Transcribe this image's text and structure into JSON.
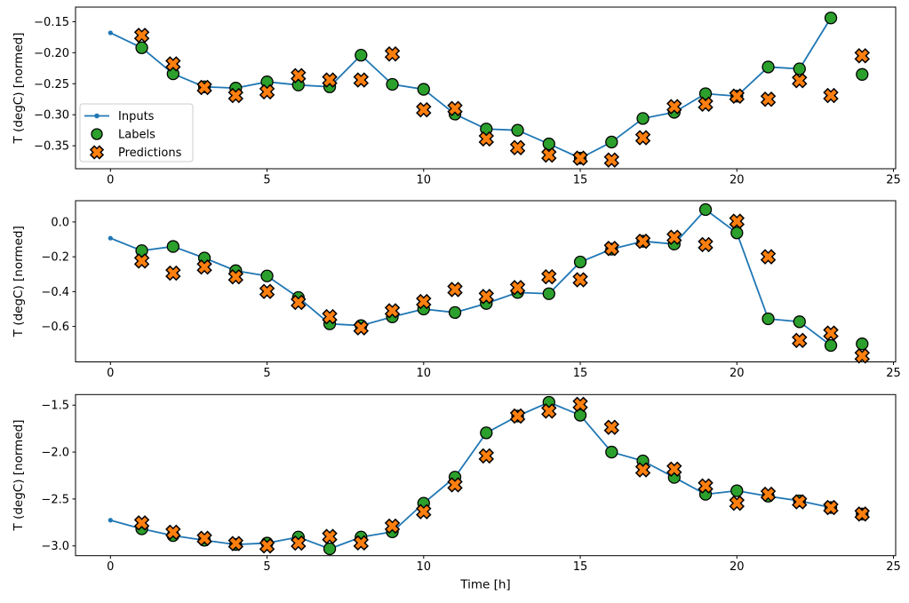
{
  "figure": {
    "kind": "matplotlib-style time series figure",
    "background": "#ffffff",
    "xlabel": "Time [h]",
    "ylabel": "T (degC) [normed]"
  },
  "colors": {
    "inputs": "#1f77b4",
    "labels": "#2ca02c",
    "predictions": "#ff7f0e",
    "marker_edge": "#000000",
    "legend_border": "#cccccc",
    "axis": "#000000"
  },
  "legend": {
    "position": "upper-left-of-first-subplot",
    "entries": [
      {
        "label": "Inputs",
        "marker": "line-dot",
        "color": "#1f77b4"
      },
      {
        "label": "Labels",
        "marker": "circle",
        "color": "#2ca02c"
      },
      {
        "label": "Predictions",
        "marker": "x-cross",
        "color": "#ff7f0e"
      }
    ]
  },
  "x_axis": {
    "ticks": [
      0,
      5,
      10,
      15,
      20,
      25
    ],
    "tick_labels": [
      "0",
      "5",
      "10",
      "15",
      "20",
      "25"
    ]
  },
  "chart_data": [
    {
      "id": "top",
      "type": "line",
      "ylabel": "T (degC) [normed]",
      "xlabel": "",
      "xlim": [
        -1.115,
        25.07
      ],
      "ylim": [
        -0.387,
        -0.1265
      ],
      "grid": false,
      "y_ticks": [
        {
          "v": -0.15,
          "label": "−0.15"
        },
        {
          "v": -0.2,
          "label": "−0.20"
        },
        {
          "v": -0.25,
          "label": "−0.25"
        },
        {
          "v": -0.3,
          "label": "−0.30"
        },
        {
          "v": -0.35,
          "label": "−0.35"
        }
      ],
      "series": [
        {
          "name": "Inputs",
          "kind": "line-dot",
          "x": [
            0,
            1,
            2,
            3,
            4,
            5,
            6,
            7,
            8,
            9,
            10,
            11,
            12,
            13,
            14,
            15,
            16,
            17,
            18,
            19,
            20,
            21,
            22,
            23
          ],
          "y": [
            -0.168,
            -0.192,
            -0.234,
            -0.255,
            -0.257,
            -0.247,
            -0.252,
            -0.255,
            -0.204,
            -0.251,
            -0.259,
            -0.299,
            -0.323,
            -0.325,
            -0.347,
            -0.37,
            -0.344,
            -0.306,
            -0.296,
            -0.266,
            -0.27,
            -0.223,
            -0.226,
            -0.144
          ]
        },
        {
          "name": "Labels",
          "kind": "circle",
          "x": [
            1,
            2,
            3,
            4,
            5,
            6,
            7,
            8,
            9,
            10,
            11,
            12,
            13,
            14,
            15,
            16,
            17,
            18,
            19,
            20,
            21,
            22,
            23,
            24
          ],
          "y": [
            -0.192,
            -0.234,
            -0.255,
            -0.257,
            -0.247,
            -0.252,
            -0.255,
            -0.204,
            -0.251,
            -0.259,
            -0.299,
            -0.323,
            -0.325,
            -0.347,
            -0.37,
            -0.344,
            -0.306,
            -0.296,
            -0.266,
            -0.27,
            -0.223,
            -0.226,
            -0.144,
            -0.235
          ]
        },
        {
          "name": "Predictions",
          "kind": "x-cross",
          "x": [
            1,
            2,
            3,
            4,
            5,
            6,
            7,
            8,
            9,
            10,
            11,
            12,
            13,
            14,
            15,
            16,
            17,
            18,
            19,
            20,
            21,
            22,
            23,
            24
          ],
          "y": [
            -0.172,
            -0.218,
            -0.256,
            -0.269,
            -0.263,
            -0.237,
            -0.244,
            -0.244,
            -0.202,
            -0.292,
            -0.29,
            -0.339,
            -0.353,
            -0.365,
            -0.37,
            -0.373,
            -0.337,
            -0.287,
            -0.283,
            -0.27,
            -0.275,
            -0.245,
            -0.269,
            -0.205
          ]
        }
      ]
    },
    {
      "id": "middle",
      "type": "line",
      "ylabel": "T (degC) [normed]",
      "xlabel": "",
      "xlim": [
        -1.115,
        25.07
      ],
      "ylim": [
        -0.8035,
        0.122
      ],
      "grid": false,
      "y_ticks": [
        {
          "v": 0.0,
          "label": "0.0"
        },
        {
          "v": -0.2,
          "label": "−0.2"
        },
        {
          "v": -0.4,
          "label": "−0.4"
        },
        {
          "v": -0.6,
          "label": "−0.6"
        }
      ],
      "series": [
        {
          "name": "Inputs",
          "kind": "line-dot",
          "x": [
            0,
            1,
            2,
            3,
            4,
            5,
            6,
            7,
            8,
            9,
            10,
            11,
            12,
            13,
            14,
            15,
            16,
            17,
            18,
            19,
            20,
            21,
            22,
            23
          ],
          "y": [
            -0.093,
            -0.165,
            -0.141,
            -0.207,
            -0.28,
            -0.31,
            -0.434,
            -0.585,
            -0.595,
            -0.545,
            -0.5,
            -0.52,
            -0.468,
            -0.405,
            -0.412,
            -0.23,
            -0.156,
            -0.111,
            -0.127,
            0.071,
            -0.063,
            -0.556,
            -0.573,
            -0.709
          ]
        },
        {
          "name": "Labels",
          "kind": "circle",
          "x": [
            1,
            2,
            3,
            4,
            5,
            6,
            7,
            8,
            9,
            10,
            11,
            12,
            13,
            14,
            15,
            16,
            17,
            18,
            19,
            20,
            21,
            22,
            23,
            24
          ],
          "y": [
            -0.165,
            -0.141,
            -0.207,
            -0.28,
            -0.31,
            -0.434,
            -0.585,
            -0.595,
            -0.545,
            -0.5,
            -0.52,
            -0.468,
            -0.405,
            -0.412,
            -0.23,
            -0.156,
            -0.111,
            -0.127,
            0.071,
            -0.063,
            -0.556,
            -0.573,
            -0.709,
            -0.7
          ]
        },
        {
          "name": "Predictions",
          "kind": "x-cross",
          "x": [
            1,
            2,
            3,
            4,
            5,
            6,
            7,
            8,
            9,
            10,
            11,
            12,
            13,
            14,
            15,
            16,
            17,
            18,
            19,
            20,
            21,
            22,
            23,
            24
          ],
          "y": [
            -0.224,
            -0.294,
            -0.259,
            -0.315,
            -0.399,
            -0.462,
            -0.544,
            -0.608,
            -0.51,
            -0.457,
            -0.388,
            -0.428,
            -0.377,
            -0.315,
            -0.332,
            -0.152,
            -0.111,
            -0.088,
            -0.13,
            0.004,
            -0.2,
            -0.68,
            -0.638,
            -0.769
          ]
        }
      ]
    },
    {
      "id": "bottom",
      "type": "line",
      "ylabel": "T (degC) [normed]",
      "xlabel": "Time [h]",
      "xlim": [
        -1.115,
        25.07
      ],
      "ylim": [
        -3.104,
        -1.387
      ],
      "grid": false,
      "y_ticks": [
        {
          "v": -1.5,
          "label": "−1.5"
        },
        {
          "v": -2.0,
          "label": "−2.0"
        },
        {
          "v": -2.5,
          "label": "−2.5"
        },
        {
          "v": -3.0,
          "label": "−3.0"
        }
      ],
      "series": [
        {
          "name": "Inputs",
          "kind": "line-dot",
          "x": [
            0,
            1,
            2,
            3,
            4,
            5,
            6,
            7,
            8,
            9,
            10,
            11,
            12,
            13,
            14,
            15,
            16,
            17,
            18,
            19,
            20,
            21,
            22,
            23
          ],
          "y": [
            -2.726,
            -2.818,
            -2.89,
            -2.94,
            -2.985,
            -2.97,
            -2.906,
            -3.031,
            -2.906,
            -2.85,
            -2.545,
            -2.267,
            -1.795,
            -1.616,
            -1.469,
            -1.607,
            -2.0,
            -2.094,
            -2.27,
            -2.45,
            -2.412,
            -2.47,
            -2.52,
            -2.591
          ]
        },
        {
          "name": "Labels",
          "kind": "circle",
          "x": [
            1,
            2,
            3,
            4,
            5,
            6,
            7,
            8,
            9,
            10,
            11,
            12,
            13,
            14,
            15,
            16,
            17,
            18,
            19,
            20,
            21,
            22,
            23,
            24
          ],
          "y": [
            -2.818,
            -2.89,
            -2.94,
            -2.985,
            -2.97,
            -2.906,
            -3.031,
            -2.906,
            -2.85,
            -2.545,
            -2.267,
            -1.795,
            -1.616,
            -1.469,
            -1.607,
            -2.0,
            -2.094,
            -2.27,
            -2.45,
            -2.412,
            -2.47,
            -2.52,
            -2.591,
            -2.66
          ]
        },
        {
          "name": "Predictions",
          "kind": "x-cross",
          "x": [
            1,
            2,
            3,
            4,
            5,
            6,
            7,
            8,
            9,
            10,
            11,
            12,
            13,
            14,
            15,
            16,
            17,
            18,
            19,
            20,
            21,
            22,
            23,
            24
          ],
          "y": [
            -2.755,
            -2.855,
            -2.92,
            -2.975,
            -3.0,
            -2.97,
            -2.9,
            -2.968,
            -2.789,
            -2.635,
            -2.349,
            -2.041,
            -1.616,
            -1.563,
            -1.491,
            -1.736,
            -2.189,
            -2.182,
            -2.361,
            -2.545,
            -2.45,
            -2.53,
            -2.591,
            -2.66
          ]
        }
      ]
    }
  ]
}
